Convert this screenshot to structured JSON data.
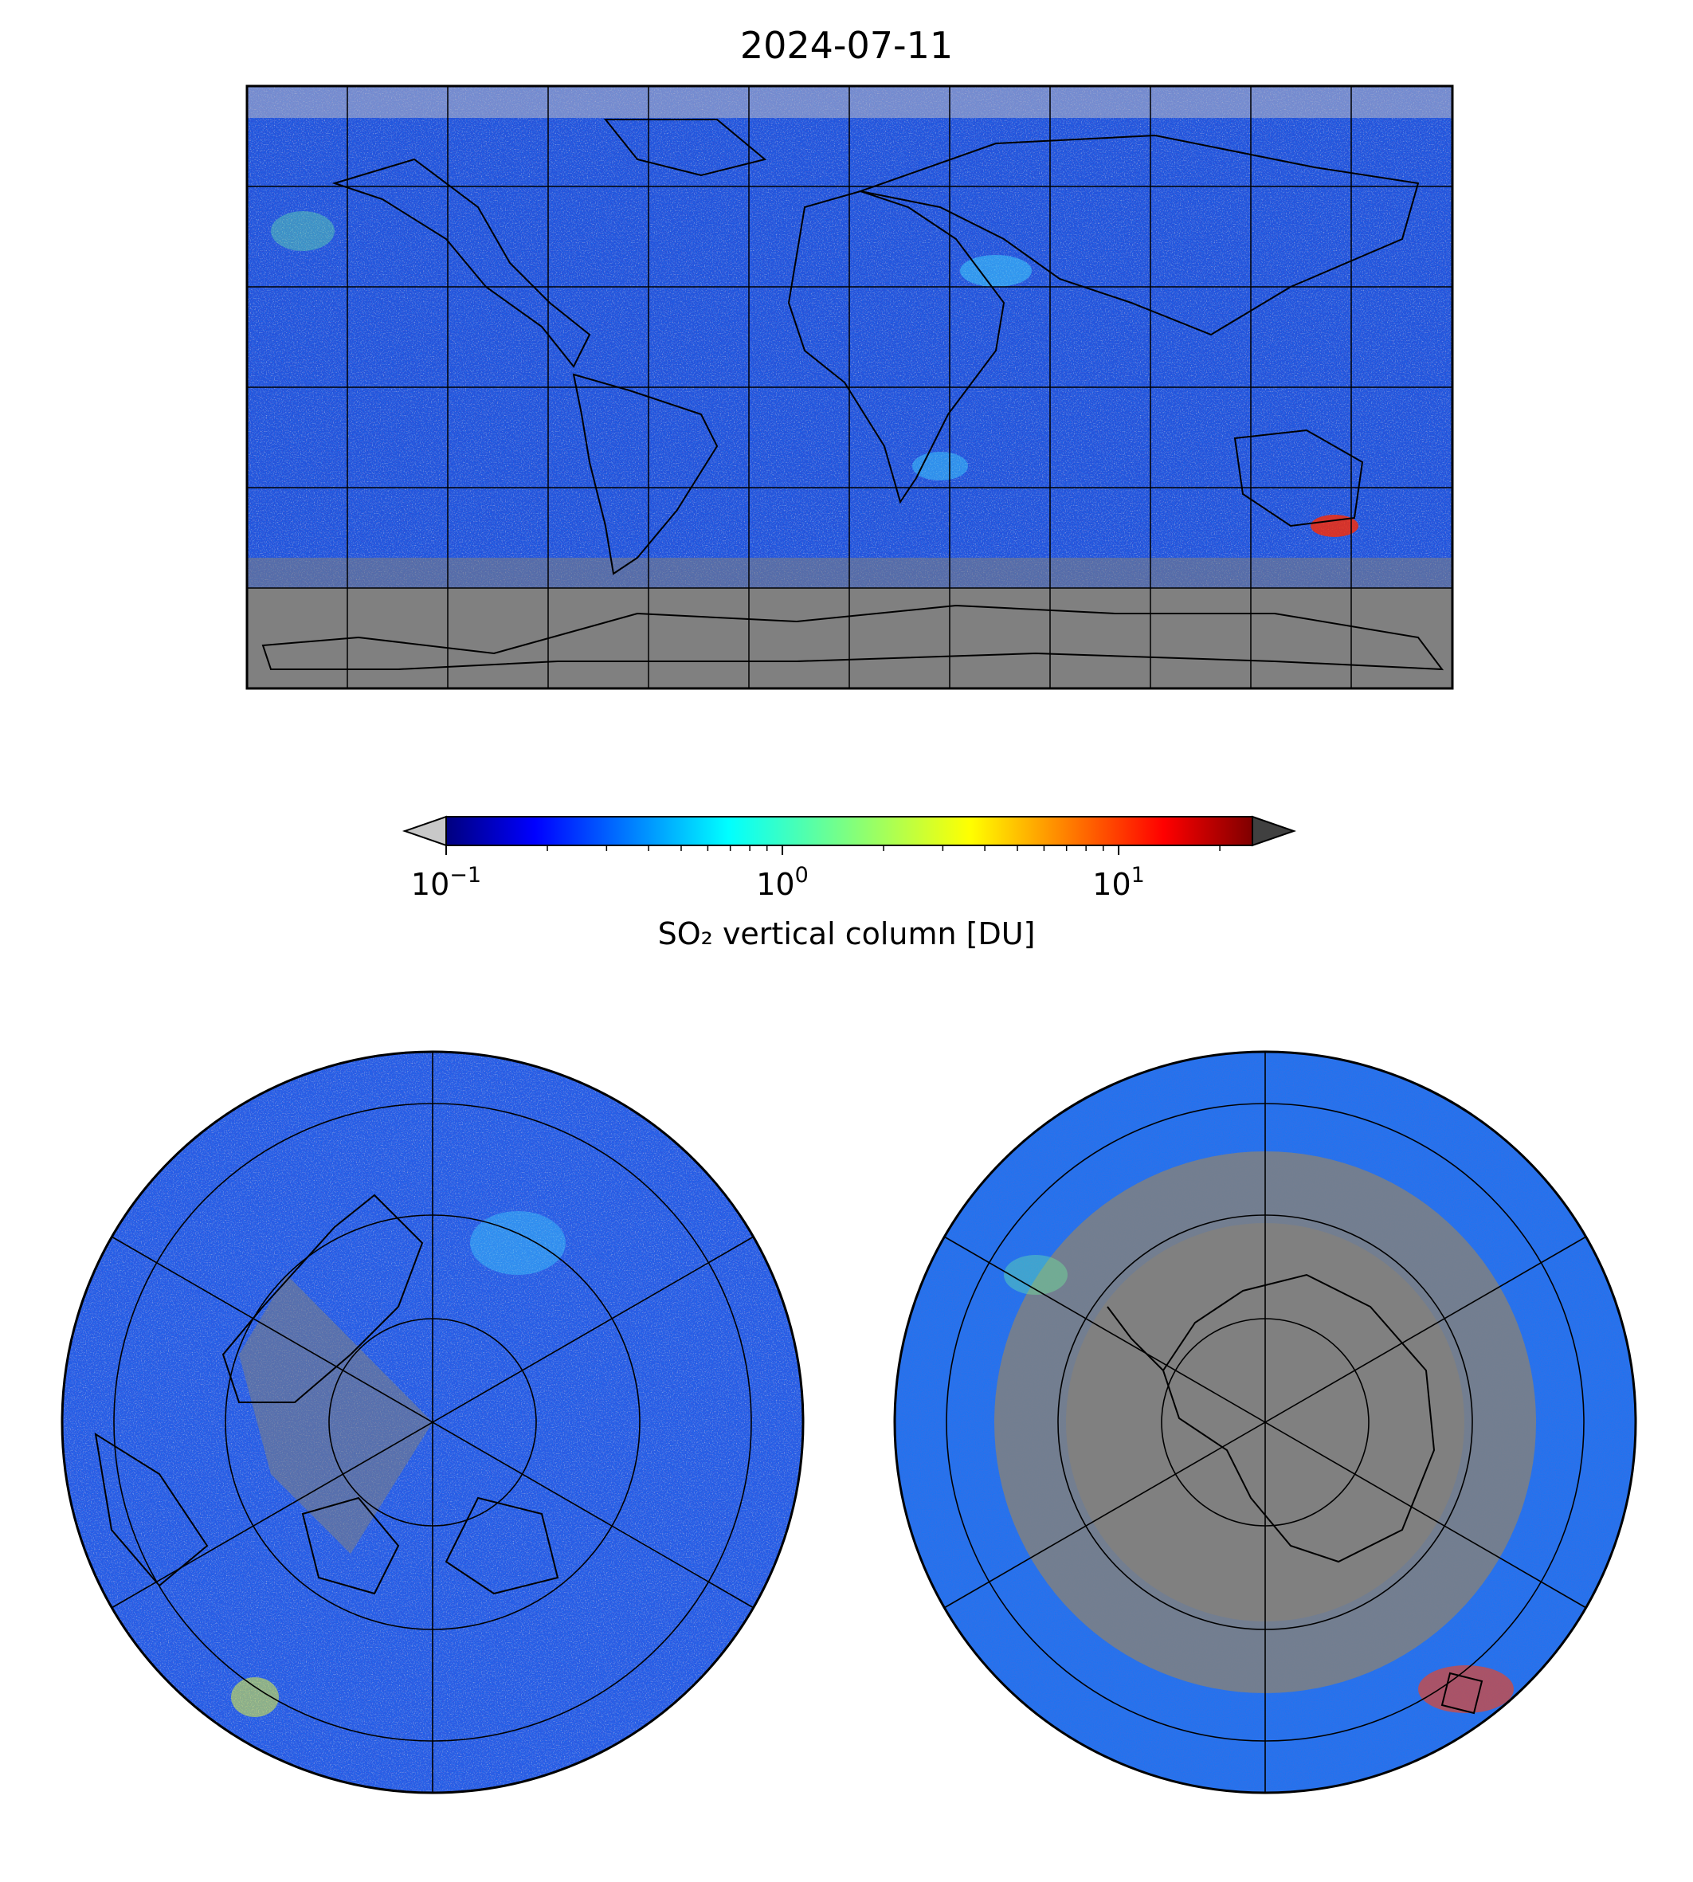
{
  "title": "2024-07-11",
  "colorbar": {
    "label": "SO₂ vertical column [DU]",
    "scale": "log",
    "range": [
      0.1,
      25
    ],
    "colormap": "jet",
    "ticks": [
      {
        "value": 0.1,
        "base": "10",
        "exp": "−1"
      },
      {
        "value": 1,
        "base": "10",
        "exp": "0"
      },
      {
        "value": 10,
        "base": "10",
        "exp": "1"
      }
    ],
    "extend_min_color": "#c8c8c8",
    "extend_max_color": "#404040"
  },
  "colors": {
    "no_data": "#808080",
    "below_min": "#c0c0c0",
    "coastline": "#000000"
  },
  "maps": [
    {
      "name": "global",
      "projection": "equirectangular",
      "gridlines": {
        "lon_step": 30,
        "lat_step": 30
      }
    },
    {
      "name": "north-polar",
      "projection": "north-polar-stereographic",
      "gridlines": {
        "lon_step": 60,
        "lat_step": 15
      }
    },
    {
      "name": "south-polar",
      "projection": "south-polar-stereographic",
      "gridlines": {
        "lon_step": 60,
        "lat_step": 15
      }
    }
  ]
}
